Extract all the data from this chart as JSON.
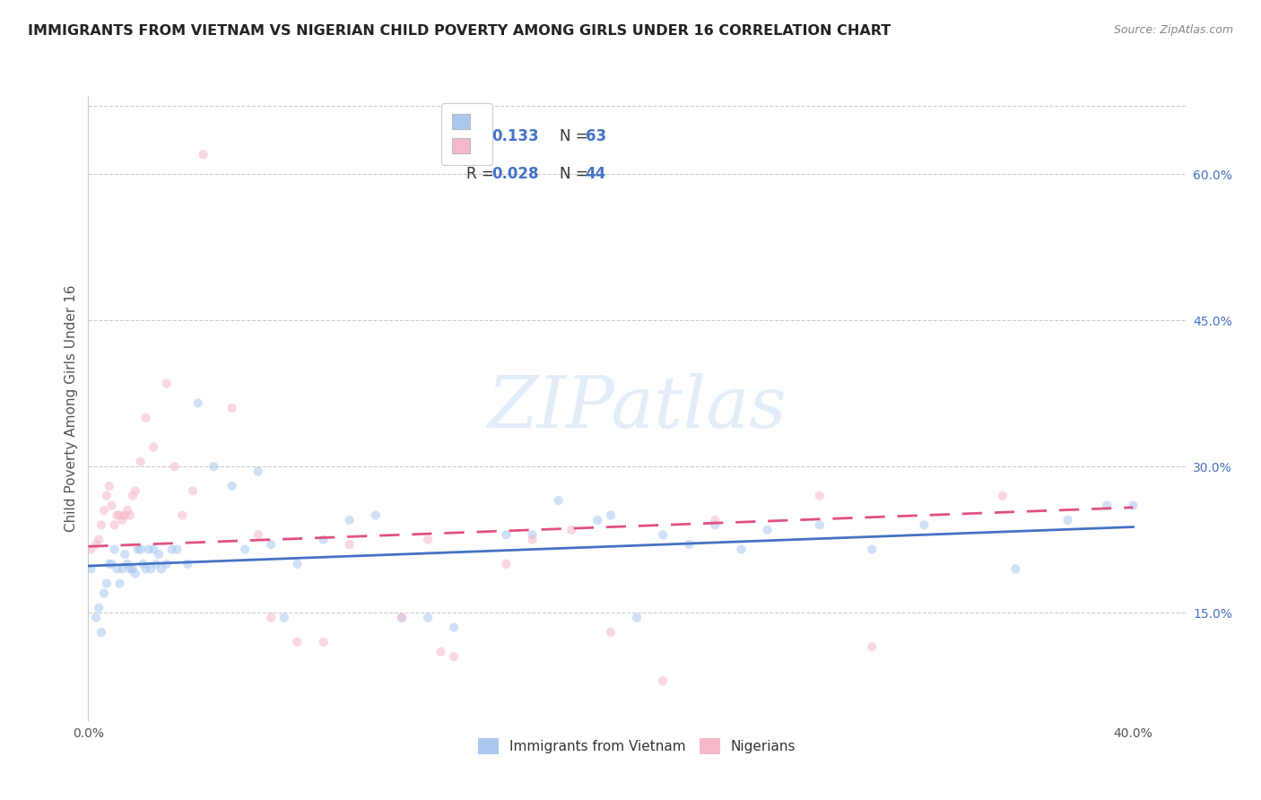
{
  "title": "IMMIGRANTS FROM VIETNAM VS NIGERIAN CHILD POVERTY AMONG GIRLS UNDER 16 CORRELATION CHART",
  "source": "Source: ZipAtlas.com",
  "ylabel": "Child Poverty Among Girls Under 16",
  "xlim": [
    0.0,
    0.42
  ],
  "ylim": [
    0.04,
    0.68
  ],
  "xticks": [
    0.0,
    0.05,
    0.1,
    0.15,
    0.2,
    0.25,
    0.3,
    0.35,
    0.4
  ],
  "xticklabels": [
    "0.0%",
    "",
    "",
    "",
    "",
    "",
    "",
    "",
    "40.0%"
  ],
  "yticks_right": [
    0.15,
    0.3,
    0.45,
    0.6
  ],
  "ytick_labels_right": [
    "15.0%",
    "30.0%",
    "45.0%",
    "60.0%"
  ],
  "legend1_R": "0.133",
  "legend1_N": "63",
  "legend2_R": "0.028",
  "legend2_N": "44",
  "legend1_color": "#a8c8f0",
  "legend2_color": "#f4b8c8",
  "watermark": "ZIPatlas",
  "blue_scatter_x": [
    0.001,
    0.003,
    0.004,
    0.005,
    0.006,
    0.007,
    0.008,
    0.009,
    0.01,
    0.011,
    0.012,
    0.013,
    0.014,
    0.015,
    0.016,
    0.017,
    0.018,
    0.019,
    0.02,
    0.021,
    0.022,
    0.023,
    0.024,
    0.025,
    0.026,
    0.027,
    0.028,
    0.03,
    0.032,
    0.034,
    0.038,
    0.042,
    0.048,
    0.055,
    0.06,
    0.065,
    0.07,
    0.075,
    0.08,
    0.09,
    0.1,
    0.11,
    0.12,
    0.13,
    0.14,
    0.16,
    0.17,
    0.18,
    0.195,
    0.2,
    0.21,
    0.22,
    0.23,
    0.24,
    0.25,
    0.26,
    0.28,
    0.3,
    0.32,
    0.355,
    0.375,
    0.39,
    0.4
  ],
  "blue_scatter_y": [
    0.195,
    0.145,
    0.155,
    0.13,
    0.17,
    0.18,
    0.2,
    0.2,
    0.215,
    0.195,
    0.18,
    0.195,
    0.21,
    0.2,
    0.195,
    0.195,
    0.19,
    0.215,
    0.215,
    0.2,
    0.195,
    0.215,
    0.195,
    0.215,
    0.2,
    0.21,
    0.195,
    0.2,
    0.215,
    0.215,
    0.2,
    0.365,
    0.3,
    0.28,
    0.215,
    0.295,
    0.22,
    0.145,
    0.2,
    0.225,
    0.245,
    0.25,
    0.145,
    0.145,
    0.135,
    0.23,
    0.23,
    0.265,
    0.245,
    0.25,
    0.145,
    0.23,
    0.22,
    0.24,
    0.215,
    0.235,
    0.24,
    0.215,
    0.24,
    0.195,
    0.245,
    0.26,
    0.26
  ],
  "pink_scatter_x": [
    0.001,
    0.003,
    0.004,
    0.005,
    0.006,
    0.007,
    0.008,
    0.009,
    0.01,
    0.011,
    0.012,
    0.013,
    0.014,
    0.015,
    0.016,
    0.017,
    0.018,
    0.02,
    0.022,
    0.025,
    0.03,
    0.033,
    0.036,
    0.04,
    0.044,
    0.055,
    0.065,
    0.07,
    0.08,
    0.09,
    0.1,
    0.12,
    0.13,
    0.135,
    0.14,
    0.16,
    0.17,
    0.185,
    0.2,
    0.22,
    0.24,
    0.28,
    0.3,
    0.35
  ],
  "pink_scatter_y": [
    0.215,
    0.22,
    0.225,
    0.24,
    0.255,
    0.27,
    0.28,
    0.26,
    0.24,
    0.25,
    0.25,
    0.245,
    0.25,
    0.255,
    0.25,
    0.27,
    0.275,
    0.305,
    0.35,
    0.32,
    0.385,
    0.3,
    0.25,
    0.275,
    0.62,
    0.36,
    0.23,
    0.145,
    0.12,
    0.12,
    0.22,
    0.145,
    0.225,
    0.11,
    0.105,
    0.2,
    0.225,
    0.235,
    0.13,
    0.08,
    0.245,
    0.27,
    0.115,
    0.27
  ],
  "blue_trend_x": [
    0.0,
    0.4
  ],
  "blue_trend_y": [
    0.198,
    0.238
  ],
  "pink_trend_x": [
    0.0,
    0.4
  ],
  "pink_trend_y": [
    0.218,
    0.258
  ],
  "title_fontsize": 11.5,
  "axis_label_fontsize": 11,
  "tick_fontsize": 10,
  "scatter_size": 55,
  "scatter_alpha": 0.55,
  "background_color": "#ffffff",
  "grid_color": "#cccccc"
}
